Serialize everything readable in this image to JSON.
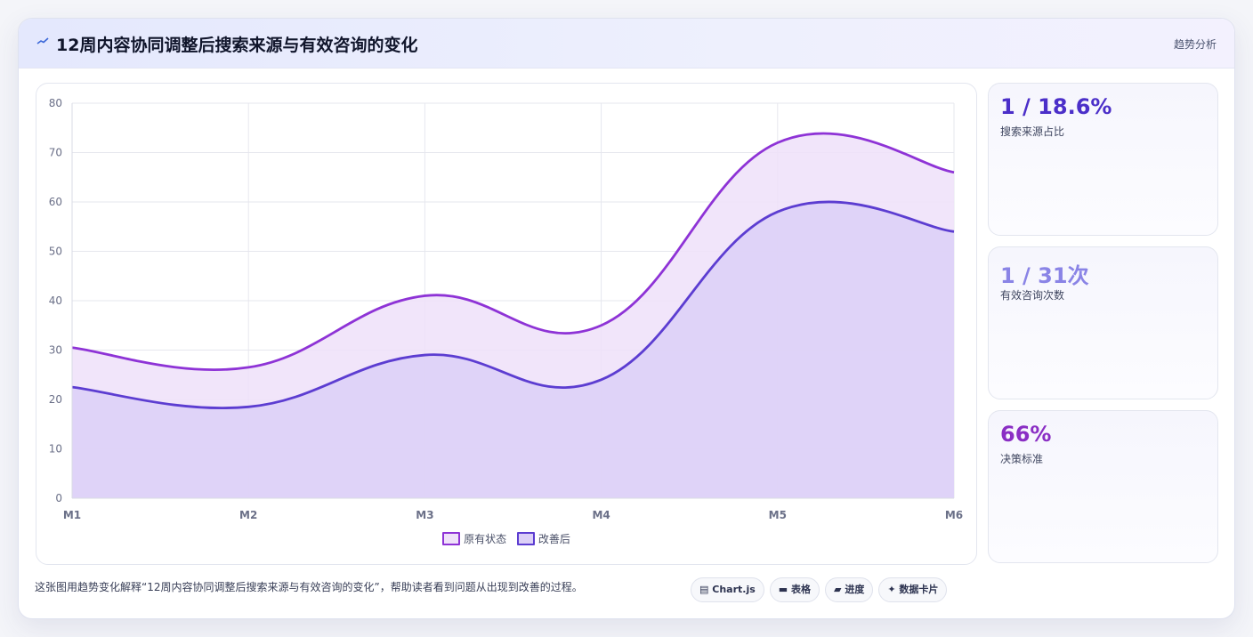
{
  "header": {
    "title": "12周内容协同调整后搜索来源与有效咨询的变化",
    "right_label": "趋势分析"
  },
  "chart_data": {
    "type": "area",
    "categories": [
      "M1",
      "M2",
      "M3",
      "M4",
      "M5",
      "M6"
    ],
    "series": [
      {
        "name": "原有状态",
        "values": [
          30.5,
          26.5,
          41,
          35,
          72,
          66
        ],
        "color": "#8e33d6",
        "fill": "#efe1f9"
      },
      {
        "name": "改善后",
        "values": [
          22.5,
          18.5,
          29,
          24,
          58,
          54
        ],
        "color": "#5c3dd1",
        "fill": "#dcd0f7"
      }
    ],
    "ylim": [
      0,
      80
    ],
    "yticks": [
      0,
      10,
      20,
      30,
      40,
      50,
      60,
      70,
      80
    ],
    "grid": true,
    "legend": "bottom"
  },
  "stats": [
    {
      "value": "1 / 18.6%",
      "label": "搜索来源占比",
      "color": "#4b2fc9"
    },
    {
      "value": "1 / 31次",
      "label": "有效咨询次数",
      "color": "#8a84e6"
    },
    {
      "value": "66%",
      "label": "决策标准",
      "color": "#8a2ec4"
    }
  ],
  "caption": "这张图用趋势变化解释“12周内容协同调整后搜索来源与有效咨询的变化”，帮助读者看到问题从出现到改善的过程。",
  "tags": [
    {
      "icon": "▤",
      "label": "Chart.js"
    },
    {
      "icon": "▬",
      "label": "表格"
    },
    {
      "icon": "▰",
      "label": "进度"
    },
    {
      "icon": "✦",
      "label": "数据卡片"
    }
  ]
}
